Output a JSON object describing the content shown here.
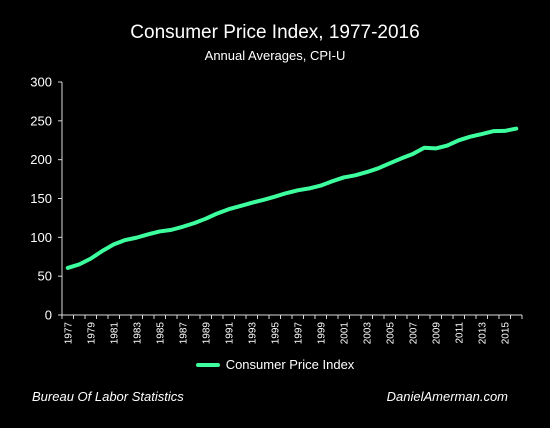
{
  "chart_data": {
    "type": "line",
    "title": "Consumer Price Index, 1977-2016",
    "subtitle": "Annual Averages, CPI-U",
    "xlabel": "",
    "ylabel": "",
    "ylim": [
      0,
      300
    ],
    "yticks": [
      0,
      50,
      100,
      150,
      200,
      250,
      300
    ],
    "xticks": [
      1977,
      1979,
      1981,
      1983,
      1985,
      1987,
      1989,
      1991,
      1993,
      1995,
      1997,
      1999,
      2001,
      2003,
      2005,
      2007,
      2009,
      2011,
      2013,
      2015
    ],
    "grid": false,
    "legend_position": "bottom",
    "line_color": "#3dff9e",
    "series": [
      {
        "name": "Consumer Price Index",
        "x": [
          1977,
          1978,
          1979,
          1980,
          1981,
          1982,
          1983,
          1984,
          1985,
          1986,
          1987,
          1988,
          1989,
          1990,
          1991,
          1992,
          1993,
          1994,
          1995,
          1996,
          1997,
          1998,
          1999,
          2000,
          2001,
          2002,
          2003,
          2004,
          2005,
          2006,
          2007,
          2008,
          2009,
          2010,
          2011,
          2012,
          2013,
          2014,
          2015,
          2016
        ],
        "values": [
          60.6,
          65.2,
          72.6,
          82.4,
          90.9,
          96.5,
          99.6,
          103.9,
          107.6,
          109.6,
          113.6,
          118.3,
          124.0,
          130.7,
          136.2,
          140.3,
          144.5,
          148.2,
          152.4,
          156.9,
          160.5,
          163.0,
          166.6,
          172.2,
          177.1,
          179.9,
          184.0,
          188.9,
          195.3,
          201.6,
          207.3,
          215.3,
          214.5,
          218.1,
          224.9,
          229.6,
          233.0,
          236.7,
          237.0,
          240.0
        ]
      }
    ]
  },
  "footer": {
    "source": "Bureau Of Labor Statistics",
    "credit": "DanielAmerman.com"
  }
}
